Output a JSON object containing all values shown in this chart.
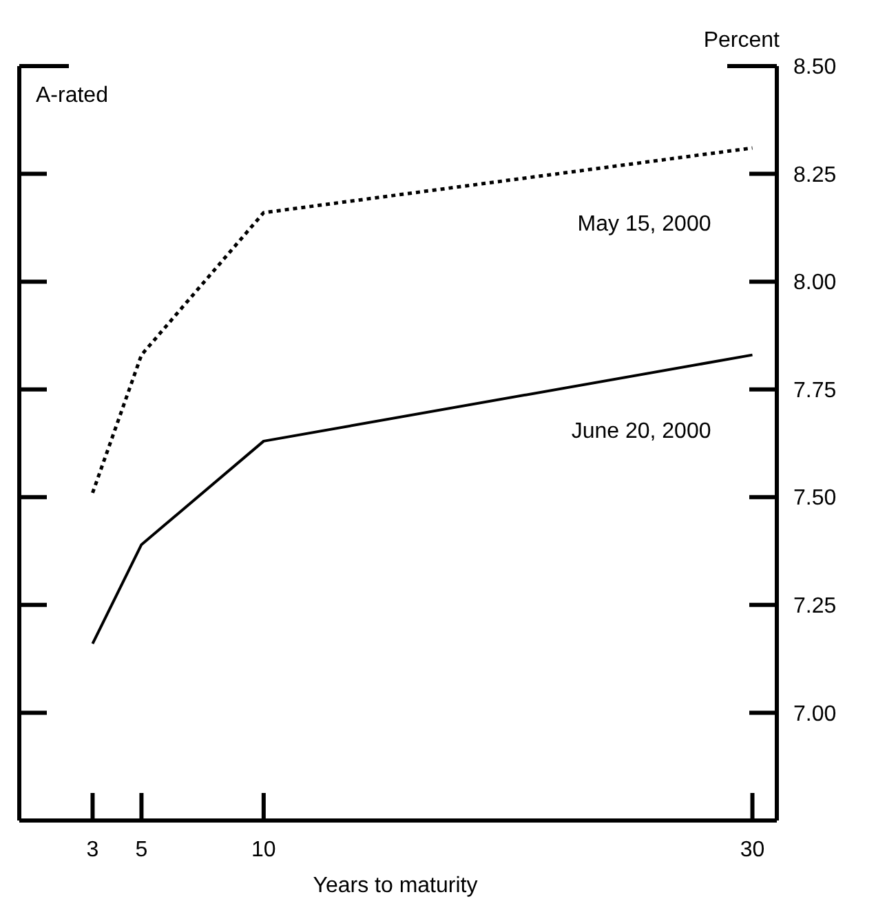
{
  "chart_data": {
    "type": "line",
    "subtitle": "A-rated",
    "ylabel": "Percent",
    "xlabel": "Years to maturity",
    "xlim": [
      0,
      31
    ],
    "xticks": [
      3,
      5,
      10,
      30
    ],
    "ylim": [
      6.75,
      8.5
    ],
    "yticks": [
      {
        "value": 7,
        "label": "7.00"
      },
      {
        "value": 7.25,
        "label": "7.25"
      },
      {
        "value": 7.5,
        "label": "7.50"
      },
      {
        "value": 7.75,
        "label": "7.75"
      },
      {
        "value": 8,
        "label": "8.00"
      },
      {
        "value": 8.25,
        "label": "8.25"
      },
      {
        "value": 8.5,
        "label": "8.50"
      }
    ],
    "series": [
      {
        "name": "May 15, 2000",
        "color": "#000000",
        "line_style": "dotted",
        "x": [
          3,
          5,
          10,
          30
        ],
        "values": [
          7.51,
          7.83,
          8.16,
          8.31
        ]
      },
      {
        "name": "June 20, 2000",
        "color": "#000000",
        "line_style": "solid",
        "x": [
          3,
          5,
          10,
          30
        ],
        "values": [
          7.16,
          7.39,
          7.63,
          7.83
        ]
      }
    ],
    "grid": false,
    "legend": false,
    "marker": "none"
  }
}
